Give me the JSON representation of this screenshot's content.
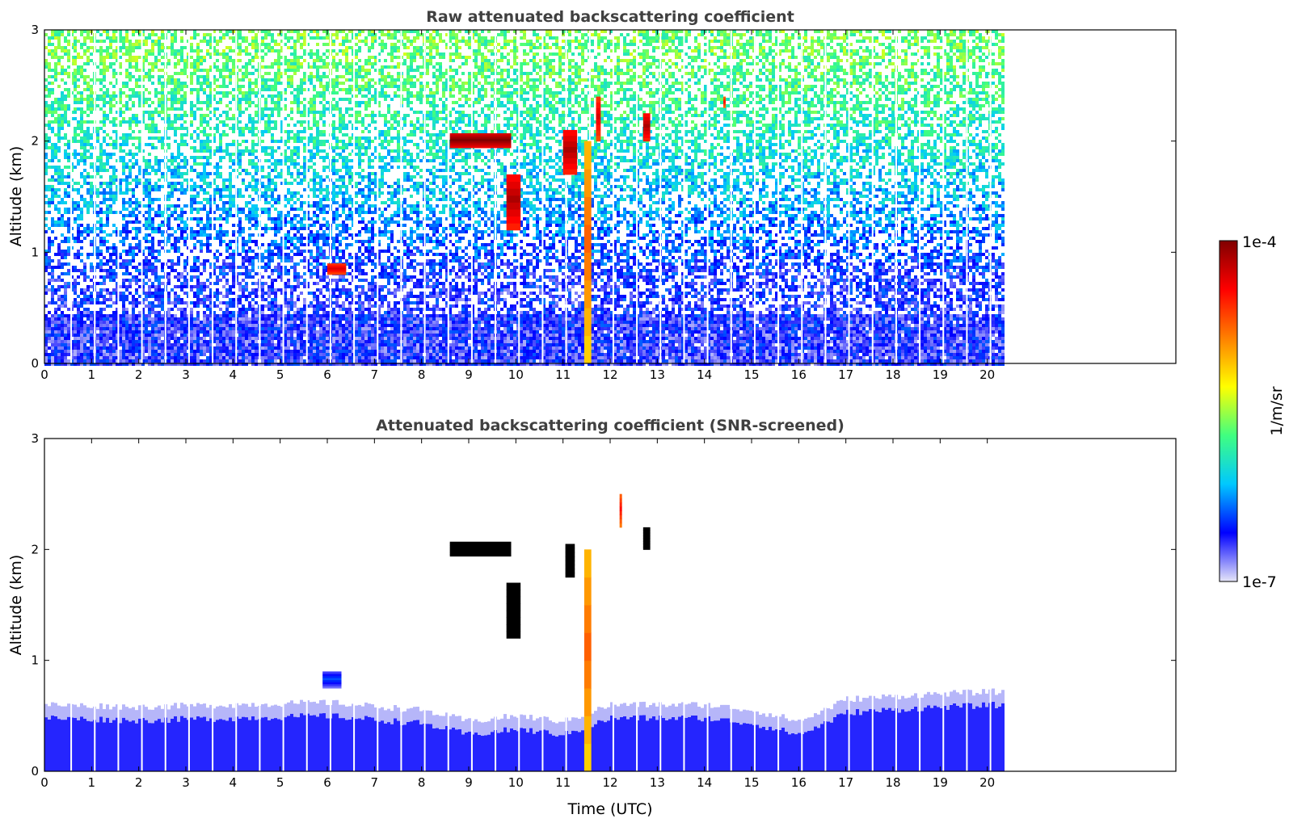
{
  "chart_data": [
    {
      "type": "heatmap",
      "title": "Raw attenuated backscattering coefficient",
      "xlabel": "",
      "ylabel": "Altitude (km)",
      "xlim": [
        0,
        24
      ],
      "ylim": [
        0,
        3
      ],
      "xticks": [
        "0",
        "1",
        "2",
        "3",
        "4",
        "5",
        "6",
        "7",
        "8",
        "9",
        "10",
        "11",
        "12",
        "13",
        "14",
        "15",
        "16",
        "17",
        "18",
        "19",
        "20"
      ],
      "yticks": [
        "0",
        "1",
        "2",
        "3"
      ],
      "data_extent_hours": [
        0,
        20.3
      ],
      "background_level_by_altitude": [
        {
          "altitude_km": 0.2,
          "level": 0.12
        },
        {
          "altitude_km": 0.8,
          "level": 0.15
        },
        {
          "altitude_km": 1.5,
          "level": 0.28
        },
        {
          "altitude_km": 2.2,
          "level": 0.38
        },
        {
          "altitude_km": 2.8,
          "level": 0.45
        }
      ],
      "features": [
        {
          "name": "Cloud layer",
          "t_start": 8.6,
          "t_end": 9.9,
          "alt_bottom": 1.94,
          "alt_top": 2.07,
          "level": 1.0
        },
        {
          "name": "Cloud patch",
          "t_start": 9.8,
          "t_end": 10.1,
          "alt_bottom": 1.2,
          "alt_top": 1.7,
          "level": 0.95
        },
        {
          "name": "Precipitation column",
          "t_start": 11.45,
          "t_end": 11.6,
          "alt_bottom": 0.0,
          "alt_top": 2.0,
          "level": 0.75
        },
        {
          "name": "Cloud patch",
          "t_start": 11.0,
          "t_end": 11.3,
          "alt_bottom": 1.7,
          "alt_top": 2.1,
          "level": 0.95
        },
        {
          "name": "Cloud patch",
          "t_start": 11.7,
          "t_end": 11.8,
          "alt_bottom": 2.0,
          "alt_top": 2.4,
          "level": 0.9
        },
        {
          "name": "Cloud patch",
          "t_start": 12.7,
          "t_end": 12.85,
          "alt_bottom": 2.0,
          "alt_top": 2.25,
          "level": 0.95
        },
        {
          "name": "Cloud patch",
          "t_start": 14.4,
          "t_end": 14.45,
          "alt_bottom": 2.3,
          "alt_top": 2.4,
          "level": 0.85
        },
        {
          "name": "Aerosol patch",
          "t_start": 6.0,
          "t_end": 6.4,
          "alt_bottom": 0.8,
          "alt_top": 0.9,
          "level": 0.9
        }
      ]
    },
    {
      "type": "heatmap",
      "title": "Attenuated backscattering coefficient (SNR-screened)",
      "xlabel": "Time (UTC)",
      "ylabel": "Altitude (km)",
      "xlim": [
        0,
        24
      ],
      "ylim": [
        0,
        3
      ],
      "xticks": [
        "0",
        "1",
        "2",
        "3",
        "4",
        "5",
        "6",
        "7",
        "8",
        "9",
        "10",
        "11",
        "12",
        "13",
        "14",
        "15",
        "16",
        "17",
        "18",
        "19",
        "20"
      ],
      "yticks": [
        "0",
        "1",
        "2",
        "3"
      ],
      "data_extent_hours": [
        0,
        20.3
      ],
      "boundary_layer_top_km": [
        {
          "t": 0,
          "alt": 0.6
        },
        {
          "t": 2,
          "alt": 0.58
        },
        {
          "t": 4,
          "alt": 0.6
        },
        {
          "t": 6,
          "alt": 0.62
        },
        {
          "t": 8,
          "alt": 0.55
        },
        {
          "t": 9,
          "alt": 0.45
        },
        {
          "t": 10,
          "alt": 0.5
        },
        {
          "t": 11,
          "alt": 0.45
        },
        {
          "t": 12,
          "alt": 0.6
        },
        {
          "t": 14,
          "alt": 0.6
        },
        {
          "t": 15,
          "alt": 0.55
        },
        {
          "t": 16,
          "alt": 0.45
        },
        {
          "t": 17,
          "alt": 0.65
        },
        {
          "t": 19,
          "alt": 0.7
        },
        {
          "t": 20.3,
          "alt": 0.72
        }
      ],
      "features": [
        {
          "name": "Cloud layer",
          "t_start": 8.6,
          "t_end": 9.9,
          "alt_bottom": 1.94,
          "alt_top": 2.07,
          "level": 1.05
        },
        {
          "name": "Cloud patch",
          "t_start": 9.8,
          "t_end": 10.1,
          "alt_bottom": 1.2,
          "alt_top": 1.7,
          "level": 1.05
        },
        {
          "name": "Precipitation column",
          "t_start": 11.45,
          "t_end": 11.6,
          "alt_bottom": 0.0,
          "alt_top": 2.0,
          "level": 0.75
        },
        {
          "name": "Cloud patch",
          "t_start": 11.05,
          "t_end": 11.25,
          "alt_bottom": 1.75,
          "alt_top": 2.05,
          "level": 1.05
        },
        {
          "name": "Cloud patch",
          "t_start": 12.2,
          "t_end": 12.25,
          "alt_bottom": 2.2,
          "alt_top": 2.5,
          "level": 0.85
        },
        {
          "name": "Cloud patch",
          "t_start": 12.7,
          "t_end": 12.85,
          "alt_bottom": 2.0,
          "alt_top": 2.2,
          "level": 1.05
        },
        {
          "name": "Aerosol patch",
          "t_start": 5.9,
          "t_end": 6.3,
          "alt_bottom": 0.75,
          "alt_top": 0.9,
          "level": 0.2
        }
      ]
    }
  ],
  "colorbar": {
    "label": "1/m/sr",
    "max_label": "1e-4",
    "min_label": "1e-7",
    "stops": [
      "#e6e6f8",
      "#0000ff",
      "#00c8ff",
      "#40ff80",
      "#ffff00",
      "#ff8000",
      "#ff0000",
      "#800000"
    ]
  }
}
